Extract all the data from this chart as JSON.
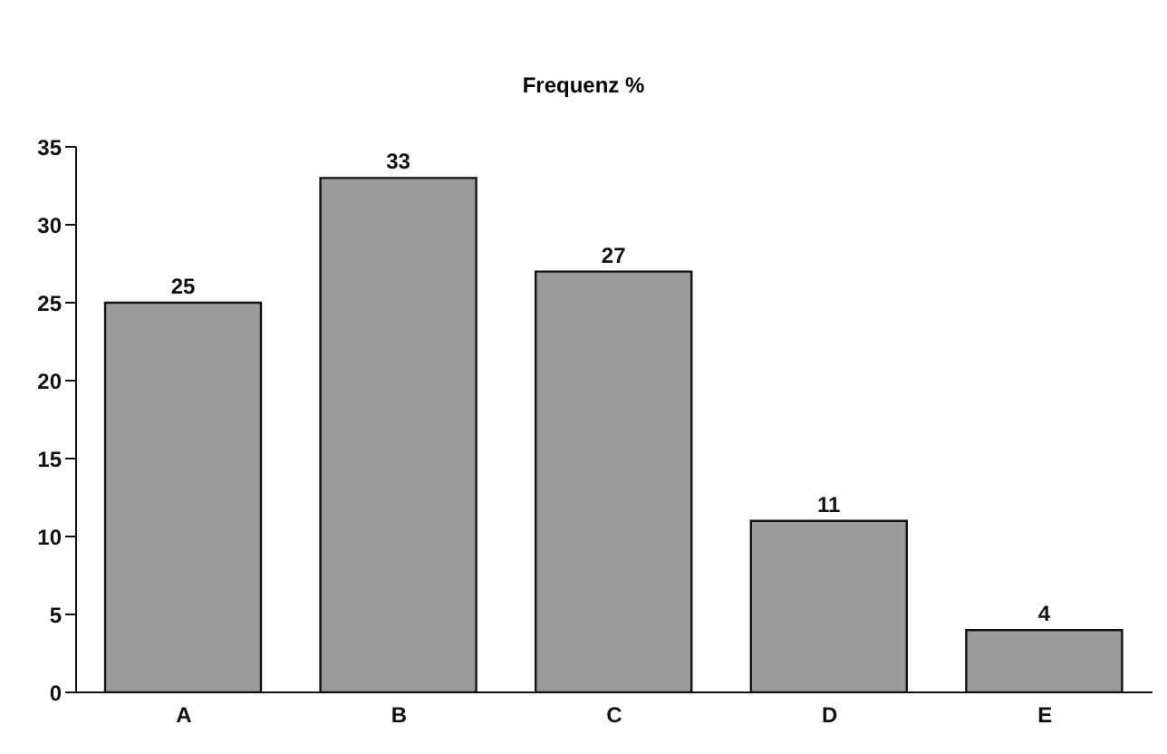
{
  "chart_data": {
    "type": "bar",
    "title": "Frequenz %",
    "categories": [
      "A",
      "B",
      "C",
      "D",
      "E"
    ],
    "values": [
      25,
      33,
      27,
      11,
      4
    ],
    "color": "#9a9a9a",
    "ylim": [
      0,
      35
    ],
    "yticks": [
      0,
      5,
      10,
      15,
      20,
      25,
      30,
      35
    ],
    "grid": false,
    "data_labels": true
  }
}
